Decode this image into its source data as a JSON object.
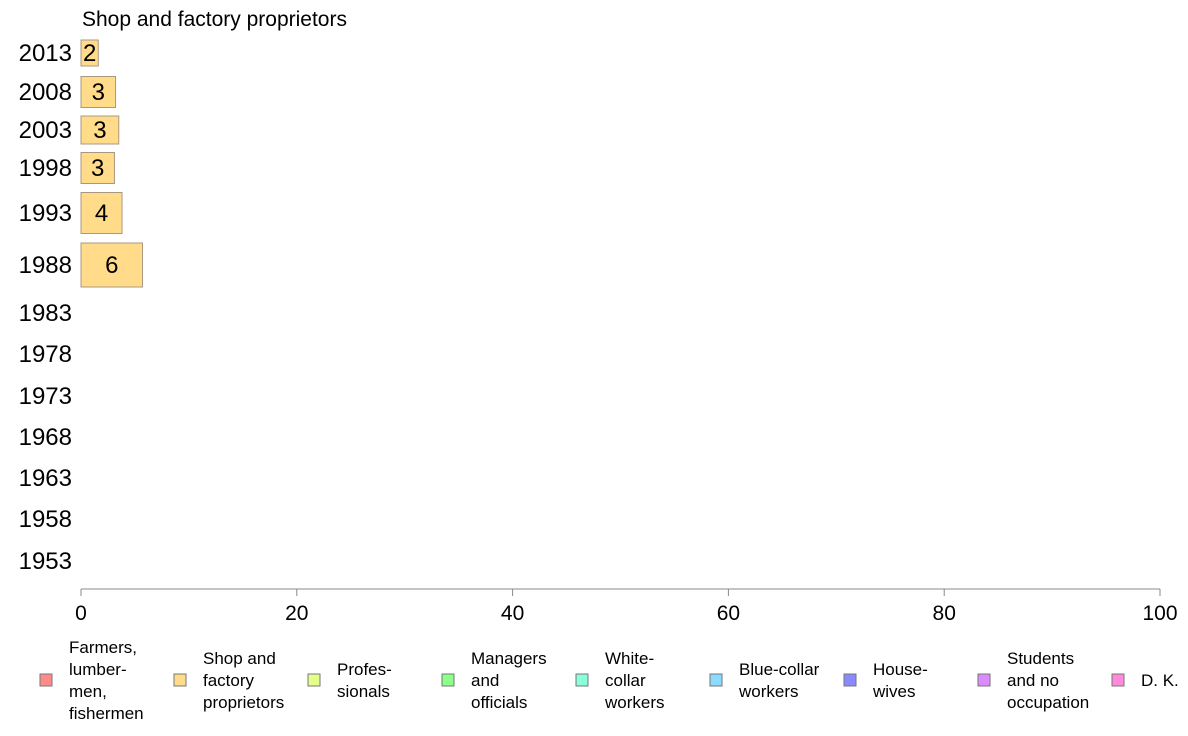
{
  "chart_data": {
    "type": "bar",
    "title": "Shop and factory proprietors",
    "xlabel": "",
    "ylabel": "",
    "xlim": [
      0,
      100
    ],
    "x_ticks": [
      "0",
      "20",
      "40",
      "60",
      "80",
      "100"
    ],
    "categories": [
      "2013",
      "2008",
      "2003",
      "1998",
      "1993",
      "1988",
      "1983",
      "1978",
      "1973",
      "1968",
      "1963",
      "1958",
      "1953"
    ],
    "series": [
      {
        "name": "Shop and factory proprietors",
        "values": [
          1.6,
          3.2,
          3.5,
          3.1,
          3.8,
          5.7,
          null,
          null,
          null,
          null,
          null,
          null,
          null
        ],
        "labels": [
          "2",
          "3",
          "3",
          "3",
          "4",
          "6",
          "",
          "",
          "",
          "",
          "",
          "",
          ""
        ],
        "color": "#FFDB8A"
      }
    ],
    "legend": {
      "position": "bottom",
      "items": [
        {
          "lines": [
            "Farmers,",
            "lumber-",
            "men,",
            "fishermen"
          ],
          "color": "#FF8A8A"
        },
        {
          "lines": [
            "Shop and",
            "factory",
            "proprietors"
          ],
          "color": "#FFDB8A"
        },
        {
          "lines": [
            "Profes-",
            "sionals"
          ],
          "color": "#E4FF8A"
        },
        {
          "lines": [
            "Managers",
            "and",
            "officials"
          ],
          "color": "#8AFF8A"
        },
        {
          "lines": [
            "White-",
            "collar",
            "workers"
          ],
          "color": "#8AFFDB"
        },
        {
          "lines": [
            "Blue-collar",
            "workers"
          ],
          "color": "#8ADBFF"
        },
        {
          "lines": [
            "House-",
            "wives"
          ],
          "color": "#8A8AFF"
        },
        {
          "lines": [
            "Students",
            "and no",
            "occupation"
          ],
          "color": "#DB8AFF"
        },
        {
          "lines": [
            "D. K."
          ],
          "color": "#FF8ADB"
        }
      ]
    },
    "grid": false
  }
}
